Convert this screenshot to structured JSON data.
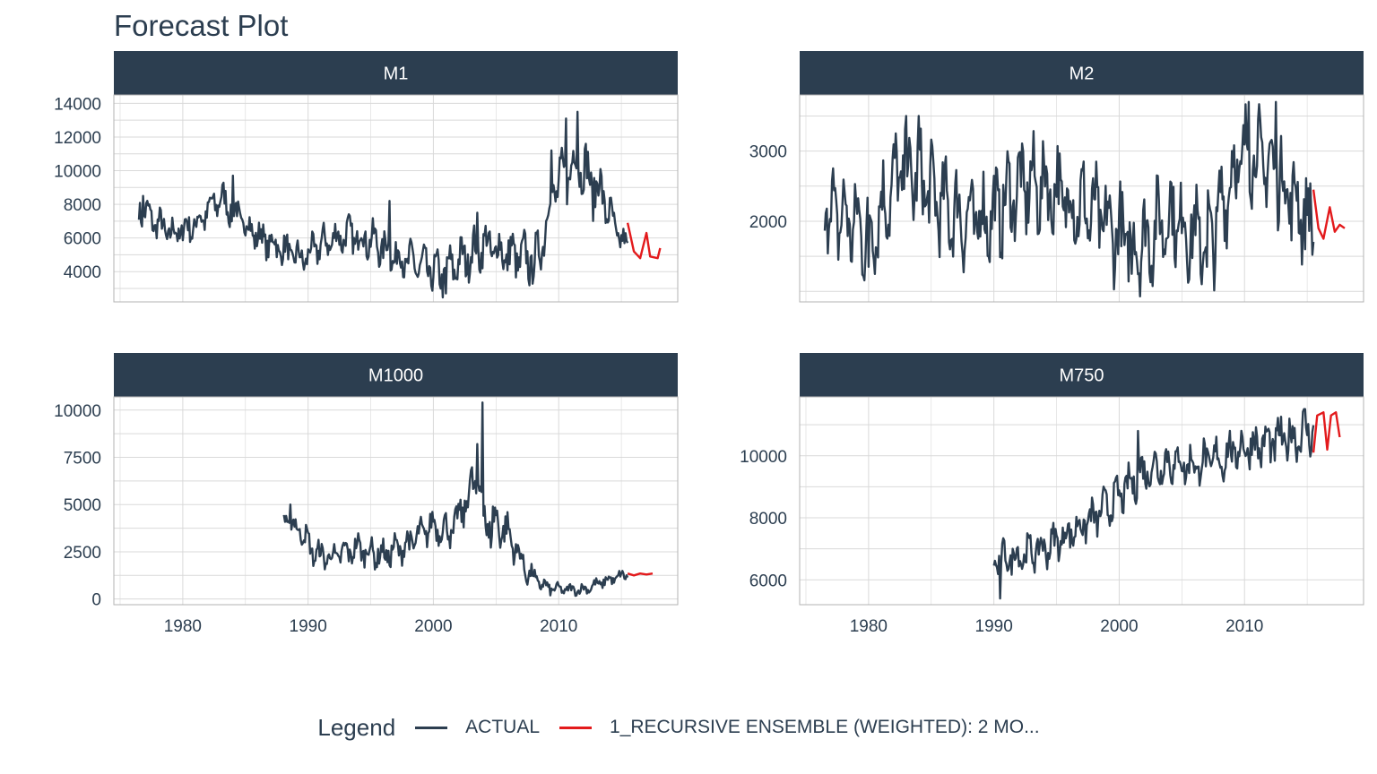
{
  "title": "Forecast Plot",
  "colors": {
    "strip_bg": "#2c3e50",
    "strip_text": "#ffffff",
    "actual": "#2c3e50",
    "forecast": "#e31a1c",
    "grid": "#d9d9d9",
    "axis_text": "#2c3e50"
  },
  "legend": {
    "title": "Legend",
    "items": [
      {
        "label": "ACTUAL",
        "color": "#2c3e50"
      },
      {
        "label": "1_RECURSIVE ENSEMBLE (WEIGHTED): 2 MO...",
        "color": "#e31a1c"
      }
    ]
  },
  "chart_data": [
    {
      "type": "line",
      "panel": "M1",
      "xlim": [
        1974.5,
        2019.5
      ],
      "xticks": [],
      "ylim": [
        2200,
        14500
      ],
      "yticks": [
        4000,
        6000,
        8000,
        10000,
        12000,
        14000
      ],
      "actual": {
        "start": 1976.5,
        "end": 2015.5,
        "base": [
          [
            1976.5,
            7800
          ],
          [
            1979,
            6200
          ],
          [
            1981,
            6800
          ],
          [
            1983,
            8400
          ],
          [
            1984,
            7600
          ],
          [
            1986,
            6100
          ],
          [
            1988,
            5300
          ],
          [
            1989.5,
            4700
          ],
          [
            1991,
            5600
          ],
          [
            1993,
            6200
          ],
          [
            1995,
            5900
          ],
          [
            1997,
            4900
          ],
          [
            1999,
            4300
          ],
          [
            2000.5,
            3800
          ],
          [
            2002.5,
            4800
          ],
          [
            2004,
            5600
          ],
          [
            2006,
            5000
          ],
          [
            2008.3,
            4600
          ],
          [
            2009.5,
            8800
          ],
          [
            2010.5,
            9600
          ],
          [
            2011.5,
            10800
          ],
          [
            2012.5,
            9400
          ],
          [
            2013.5,
            8600
          ],
          [
            2014.5,
            6400
          ],
          [
            2015.5,
            5400
          ]
        ],
        "amp": [
          [
            1976.5,
            900
          ],
          [
            1990,
            900
          ],
          [
            2009,
            1400
          ],
          [
            2013,
            1600
          ],
          [
            2015.5,
            600
          ]
        ],
        "peaks": [
          [
            2011.5,
            13500
          ],
          [
            2010.6,
            13100
          ],
          [
            2009.4,
            11200
          ],
          [
            2003.5,
            7500
          ],
          [
            1984,
            9700
          ],
          [
            1976.8,
            8500
          ],
          [
            1996.5,
            8200
          ],
          [
            2001,
            2700
          ]
        ]
      },
      "forecast": {
        "points": [
          [
            2015.5,
            6900
          ],
          [
            2016,
            5200
          ],
          [
            2016.5,
            4800
          ],
          [
            2017,
            6300
          ],
          [
            2017.3,
            4900
          ],
          [
            2017.9,
            4800
          ],
          [
            2018.1,
            5400
          ]
        ]
      }
    },
    {
      "type": "line",
      "panel": "M2",
      "xlim": [
        1974.5,
        2019.5
      ],
      "xticks": [],
      "ylim": [
        850,
        3800
      ],
      "yticks": [
        2000,
        3000
      ],
      "actual": {
        "start": 1976.5,
        "end": 2015.5,
        "base": [
          [
            1976.5,
            2200
          ],
          [
            1978.5,
            2000
          ],
          [
            1980,
            1800
          ],
          [
            1982.5,
            2700
          ],
          [
            1984,
            2600
          ],
          [
            1986,
            2200
          ],
          [
            1988,
            2000
          ],
          [
            1990,
            2100
          ],
          [
            1992,
            2500
          ],
          [
            1994,
            2500
          ],
          [
            1996,
            2300
          ],
          [
            1998,
            2100
          ],
          [
            2000,
            1800
          ],
          [
            2002,
            1700
          ],
          [
            2004,
            2100
          ],
          [
            2006,
            1800
          ],
          [
            2007.5,
            1800
          ],
          [
            2009,
            2700
          ],
          [
            2010.5,
            3000
          ],
          [
            2012.5,
            2700
          ],
          [
            2014,
            2300
          ],
          [
            2015.5,
            1900
          ]
        ],
        "amp": [
          [
            1976.5,
            600
          ],
          [
            2015.5,
            600
          ]
        ],
        "peaks": [
          [
            2010.3,
            3700
          ],
          [
            2012.5,
            3700
          ],
          [
            1983,
            3500
          ],
          [
            1984,
            3500
          ],
          [
            1980,
            1350
          ],
          [
            2001,
            1250
          ],
          [
            2006.5,
            1250
          ],
          [
            2007,
            1350
          ]
        ]
      },
      "forecast": {
        "points": [
          [
            2015.5,
            2450
          ],
          [
            2015.9,
            1900
          ],
          [
            2016.3,
            1750
          ],
          [
            2016.8,
            2200
          ],
          [
            2017.2,
            1850
          ],
          [
            2017.6,
            1950
          ],
          [
            2018,
            1900
          ]
        ]
      }
    },
    {
      "type": "line",
      "panel": "M1000",
      "xlim": [
        1974.5,
        2019.5
      ],
      "xticks": [
        1980,
        1990,
        2000,
        2010
      ],
      "ylim": [
        -300,
        10700
      ],
      "yticks": [
        0,
        2500,
        5000,
        7500,
        10000
      ],
      "actual": {
        "start": 1988,
        "end": 2015.5,
        "base": [
          [
            1988,
            4200
          ],
          [
            1989.5,
            3600
          ],
          [
            1990.5,
            2400
          ],
          [
            1992,
            2200
          ],
          [
            1994,
            2700
          ],
          [
            1996,
            2300
          ],
          [
            1998,
            2900
          ],
          [
            2000,
            3900
          ],
          [
            2001.5,
            3600
          ],
          [
            2002.5,
            5000
          ],
          [
            2003.5,
            6500
          ],
          [
            2004.2,
            4000
          ],
          [
            2005.5,
            3900
          ],
          [
            2006.5,
            2800
          ],
          [
            2007.5,
            1400
          ],
          [
            2009,
            600
          ],
          [
            2010.5,
            500
          ],
          [
            2012,
            500
          ],
          [
            2013.5,
            900
          ],
          [
            2015.5,
            1300
          ]
        ],
        "amp": [
          [
            1988,
            600
          ],
          [
            2002,
            800
          ],
          [
            2004,
            1500
          ],
          [
            2007,
            600
          ],
          [
            2010,
            250
          ],
          [
            2015.5,
            300
          ]
        ],
        "peaks": [
          [
            2003.9,
            10400
          ],
          [
            2003.5,
            8200
          ],
          [
            1988.6,
            5000
          ]
        ]
      },
      "forecast": {
        "points": [
          [
            2015.5,
            1350
          ],
          [
            2016,
            1250
          ],
          [
            2016.5,
            1350
          ],
          [
            2017,
            1300
          ],
          [
            2017.5,
            1350
          ]
        ]
      }
    },
    {
      "type": "line",
      "panel": "M750",
      "xlim": [
        1974.5,
        2019.5
      ],
      "xticks": [
        1980,
        1990,
        2000,
        2010
      ],
      "ylim": [
        5200,
        11900
      ],
      "yticks": [
        6000,
        8000,
        10000
      ],
      "actual": {
        "start": 1990,
        "end": 2015.5,
        "base": [
          [
            1990,
            6600
          ],
          [
            1992,
            6800
          ],
          [
            1994,
            7000
          ],
          [
            1996,
            7500
          ],
          [
            1998,
            8000
          ],
          [
            2000,
            8700
          ],
          [
            2002,
            9500
          ],
          [
            2004,
            9800
          ],
          [
            2006,
            9700
          ],
          [
            2008,
            9900
          ],
          [
            2010,
            10300
          ],
          [
            2012,
            10400
          ],
          [
            2014,
            10600
          ],
          [
            2015.5,
            10900
          ]
        ],
        "amp": [
          [
            1990,
            500
          ],
          [
            2015.5,
            700
          ]
        ],
        "peaks": [
          [
            2001.5,
            10800
          ],
          [
            1990.5,
            5400
          ]
        ]
      },
      "forecast": {
        "points": [
          [
            2015.5,
            10100
          ],
          [
            2015.8,
            11300
          ],
          [
            2016.3,
            11400
          ],
          [
            2016.6,
            10200
          ],
          [
            2016.9,
            11300
          ],
          [
            2017.3,
            11400
          ],
          [
            2017.6,
            10600
          ]
        ]
      }
    }
  ]
}
